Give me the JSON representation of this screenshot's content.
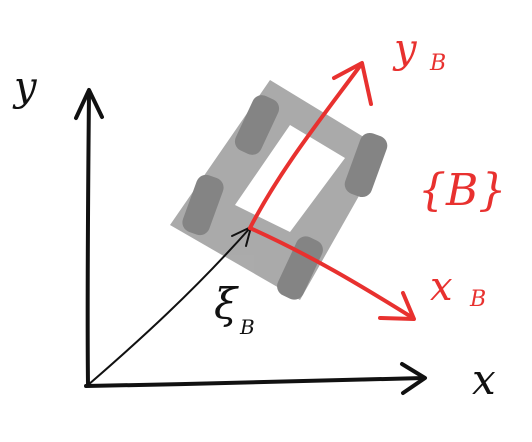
{
  "world_frame": {
    "x_label": "x",
    "y_label": "y"
  },
  "body_frame": {
    "x_label": "x",
    "x_subscript": "B",
    "y_label": "y",
    "y_subscript": "B",
    "frame_label": "{B}"
  },
  "pose_vector": {
    "label": "ξ",
    "subscript": "B"
  },
  "colors": {
    "ink": "#111111",
    "body_frame": "#e8312f",
    "vehicle_body": "#8a8a8a",
    "vehicle_wheels": "#555555"
  }
}
